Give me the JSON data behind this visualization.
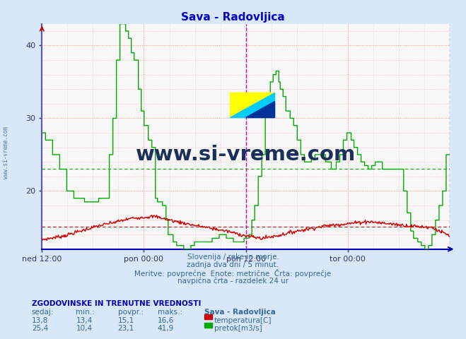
{
  "title": "Sava - Radovljica",
  "title_color": "#0000cc",
  "bg_color": "#d8e8f8",
  "plot_bg_color": "#f8f8f8",
  "grid_color_h": "#ffaaaa",
  "grid_color_v": "#ddaaaa",
  "border_color_bottom": "#0000cc",
  "border_color_left": "#4444cc",
  "x_tick_labels": [
    "ned 12:00",
    "pon 00:00",
    "pon 12:00",
    "tor 00:00"
  ],
  "x_tick_positions": [
    0.0,
    0.25,
    0.5,
    0.75
  ],
  "y_min": 12,
  "y_max": 43,
  "y_ticks": [
    20,
    30,
    40
  ],
  "avg_temp": 15.1,
  "avg_flow": 23.1,
  "vline_color": "#cc00cc",
  "watermark_text": "www.si-vreme.com",
  "watermark_color": "#1a2f5a",
  "footer_lines": [
    "Slovenija / reke in morje.",
    "zadnja dva dni / 5 minut.",
    "Meritve: povprečne  Enote: metrične  Črta: povprečje",
    "navpična črta - razdelek 24 ur"
  ],
  "table_header": "ZGODOVINSKE IN TRENUTNE VREDNOSTI",
  "table_cols": [
    "sedaj:",
    "min.:",
    "povpr.:",
    "maks.:"
  ],
  "table_row1": [
    "13,8",
    "13,4",
    "15,1",
    "16,6"
  ],
  "table_row2": [
    "25,4",
    "10,4",
    "23,1",
    "41,9"
  ],
  "legend_labels": [
    "temperatura[C]",
    "pretok[m3/s]"
  ],
  "legend_colors": [
    "#cc0000",
    "#00aa00"
  ],
  "station_name": "Sava - Radovljica",
  "temp_color": "#cc0000",
  "flow_color": "#00aa00",
  "n_points": 576,
  "logo_colors": [
    "#ffff00",
    "#00ccff",
    "#003399"
  ],
  "side_label": "www.si-vreme.com"
}
